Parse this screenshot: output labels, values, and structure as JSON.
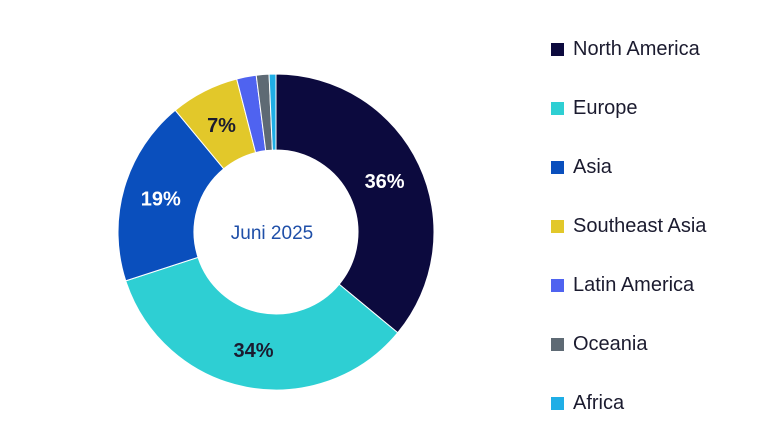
{
  "chart_data": {
    "type": "donut",
    "center_label": "Juni 2025",
    "series": [
      {
        "name": "North America",
        "value": 36,
        "label": "36%",
        "color": "#0c0a3e"
      },
      {
        "name": "Europe",
        "value": 34,
        "label": "34%",
        "color": "#2ecfd3"
      },
      {
        "name": "Asia",
        "value": 19,
        "label": "19%",
        "color": "#0a4fbd"
      },
      {
        "name": "Southeast Asia",
        "value": 7,
        "label": "7%",
        "color": "#e2c82a"
      },
      {
        "name": "Latin America",
        "value": 2,
        "label": "",
        "color": "#4f63f0"
      },
      {
        "name": "Oceania",
        "value": 1.3,
        "label": "",
        "color": "#5e6a74"
      },
      {
        "name": "Africa",
        "value": 0.7,
        "label": "",
        "color": "#1faee6"
      }
    ],
    "label_colors": {
      "dark": "#1b1b2f",
      "light": "#ffffff"
    },
    "legend_position": "right"
  }
}
